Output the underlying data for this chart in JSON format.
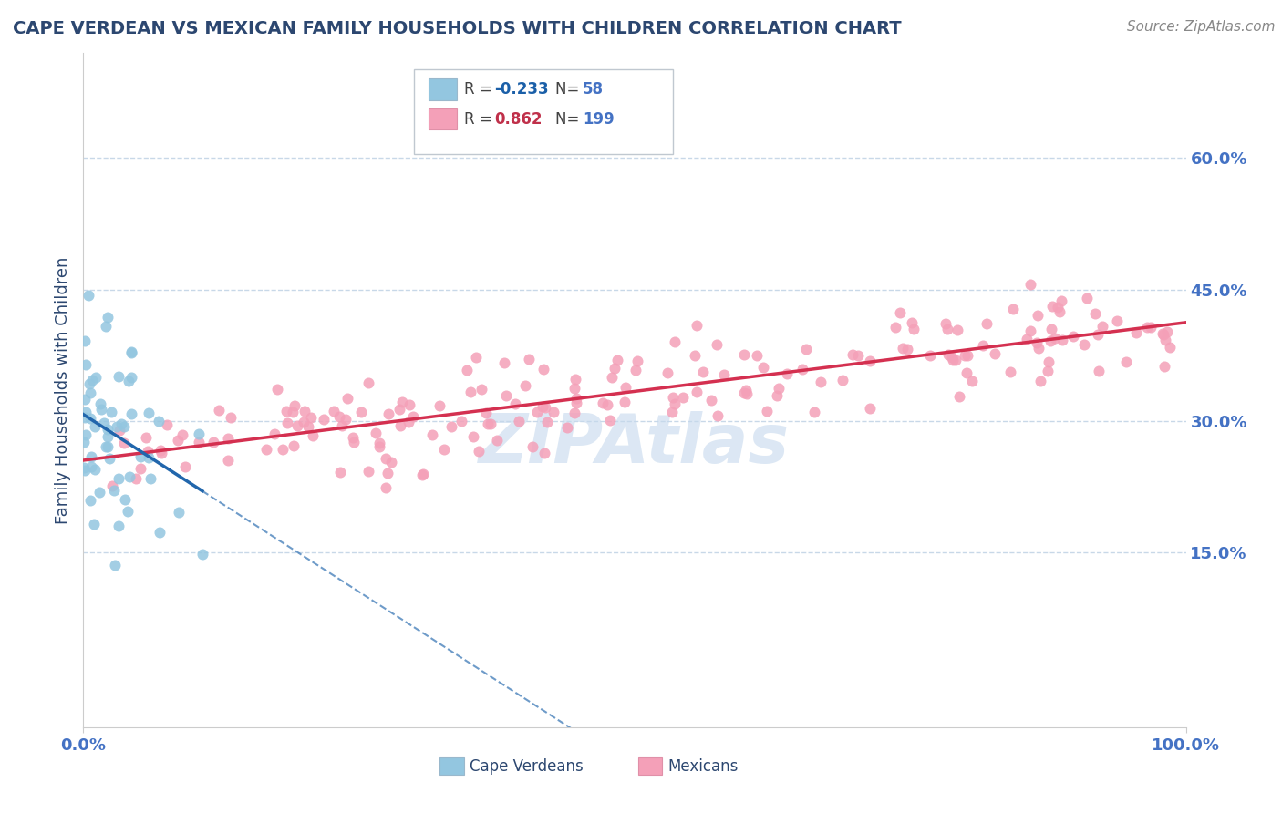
{
  "title": "CAPE VERDEAN VS MEXICAN FAMILY HOUSEHOLDS WITH CHILDREN CORRELATION CHART",
  "source": "Source: ZipAtlas.com",
  "ylabel": "Family Households with Children",
  "xlim": [
    0.0,
    1.0
  ],
  "ylim": [
    -0.05,
    0.72
  ],
  "r_cape_verdean": -0.233,
  "n_cape_verdean": 58,
  "r_mexican": 0.862,
  "n_mexican": 199,
  "color_blue": "#93c6e0",
  "color_pink": "#f4a0b8",
  "line_blue": "#2166ac",
  "line_pink": "#d43050",
  "background_color": "#ffffff",
  "grid_color": "#c8d8e8",
  "watermark_color": "#c5d8ed",
  "title_color": "#2c4770",
  "axis_label_color": "#2c4770",
  "tick_color": "#4472c4",
  "legend_r_color_blue": "#1a5fa8",
  "legend_r_color_pink": "#c0304a",
  "legend_n_color": "#4472c4",
  "seed_cv": 101,
  "seed_mx": 202
}
